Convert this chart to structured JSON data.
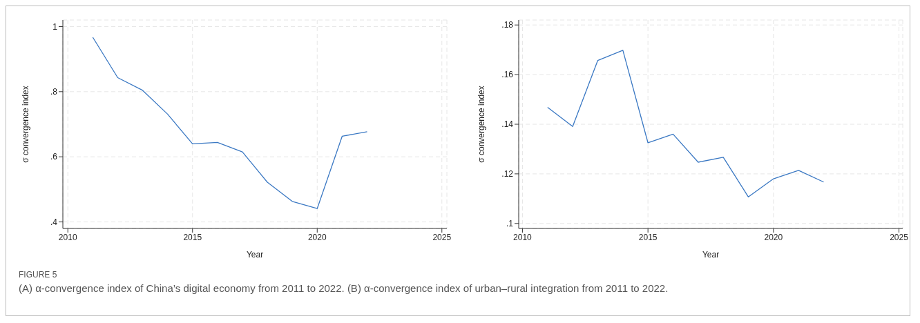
{
  "chart_data": [
    {
      "type": "line",
      "xlabel": "Year",
      "ylabel": "σ convergence index",
      "x": [
        2011,
        2012,
        2013,
        2014,
        2015,
        2016,
        2017,
        2018,
        2019,
        2020,
        2021,
        2022
      ],
      "series": [
        {
          "color": "#3a78c3",
          "values": [
            0.967,
            0.843,
            0.804,
            0.731,
            0.64,
            0.644,
            0.615,
            0.522,
            0.463,
            0.441,
            0.663,
            0.677
          ]
        }
      ],
      "xlim": [
        2009.8,
        2025.2
      ],
      "xticks": [
        2010,
        2015,
        2020,
        2025
      ],
      "ylim": [
        0.38,
        1.02
      ],
      "yticks": [
        {
          "value": 0.4,
          "label": ".4"
        },
        {
          "value": 0.6,
          "label": ".6"
        },
        {
          "value": 0.8,
          "label": ".8"
        },
        1
      ],
      "grid": true,
      "marker": "none",
      "line_style": "solid",
      "legend": false,
      "annotations": [
        "FIGURE 5",
        "(A) α-convergence index of China’s digital economy from 2011 to 2022. (B) α-convergence index of urban–rural integration from 2011 to 2022."
      ]
    },
    {
      "type": "line",
      "xlabel": "Year",
      "ylabel": "σ convergence index",
      "x": [
        2011,
        2012,
        2013,
        2014,
        2015,
        2016,
        2017,
        2018,
        2019,
        2020,
        2021,
        2022
      ],
      "series": [
        {
          "color": "#3a78c3",
          "values": [
            0.1468,
            0.1391,
            0.1657,
            0.1698,
            0.1325,
            0.136,
            0.1247,
            0.1267,
            0.1107,
            0.118,
            0.1214,
            0.1167
          ]
        }
      ],
      "xlim": [
        2009.85,
        2025.15
      ],
      "xticks": [
        2010,
        2015,
        2020,
        2025
      ],
      "ylim": [
        0.098,
        0.182
      ],
      "yticks": [
        {
          "value": 0.1,
          "label": ".1"
        },
        {
          "value": 0.12,
          "label": ".12"
        },
        {
          "value": 0.14,
          "label": ".14"
        },
        {
          "value": 0.16,
          "label": ".16"
        },
        {
          "value": 0.18,
          "label": ".18"
        }
      ],
      "grid": true,
      "marker": "none",
      "line_style": "solid",
      "legend": false
    }
  ]
}
